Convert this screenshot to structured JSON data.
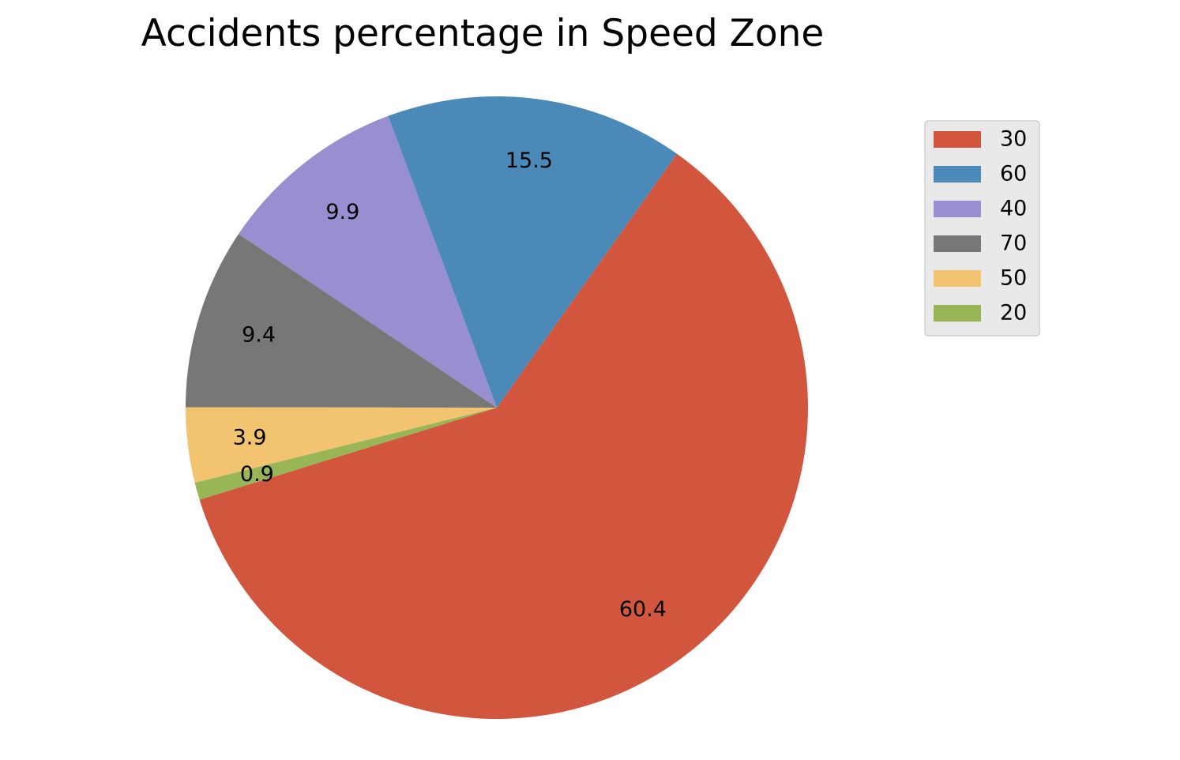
{
  "chart_data": {
    "type": "pie",
    "title": "Accidents percentage in Speed Zone",
    "labels": [
      "30",
      "60",
      "40",
      "70",
      "50",
      "20"
    ],
    "values": [
      60.4,
      15.5,
      9.9,
      9.4,
      3.9,
      0.9
    ],
    "value_labels": [
      "60.4",
      "15.5",
      "9.9",
      "9.4",
      "3.9",
      "0.9"
    ],
    "colors": [
      "#d2563e",
      "#4a89b8",
      "#978fd0",
      "#777777",
      "#f2c470",
      "#98b656"
    ],
    "start_angle_deg": 197.2,
    "direction": "counterclockwise",
    "legend": {
      "placement": "top-right",
      "entries": [
        "30",
        "60",
        "40",
        "70",
        "50",
        "20"
      ]
    }
  }
}
